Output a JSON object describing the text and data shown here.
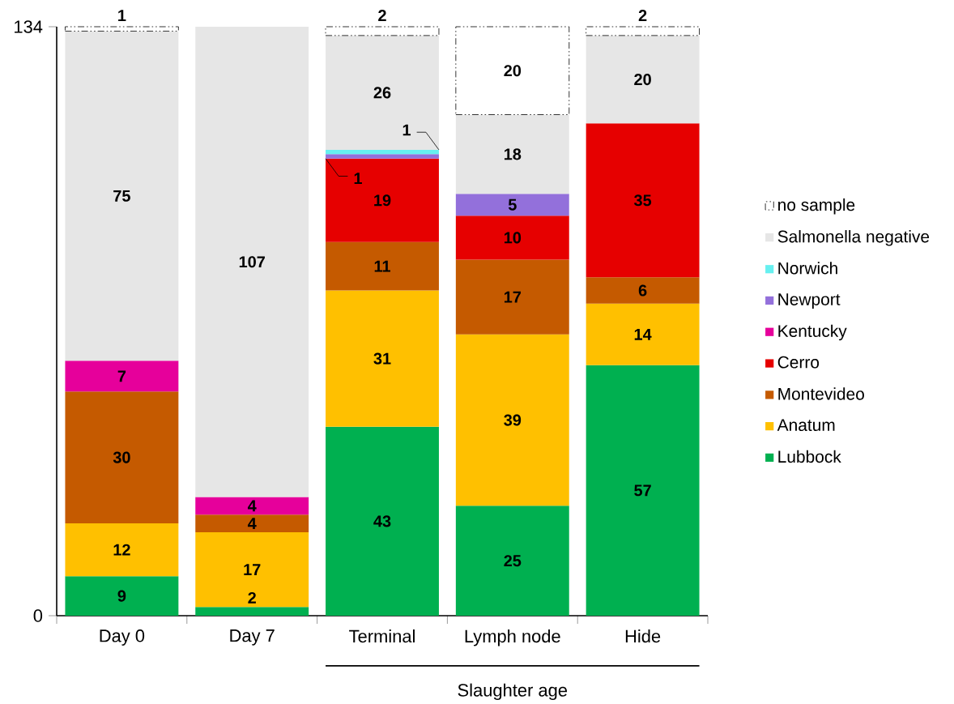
{
  "chart_data": {
    "type": "bar",
    "stacked": true,
    "categories": [
      "Day 0",
      "Day 7",
      "Terminal",
      "Lymph node",
      "Hide"
    ],
    "series": [
      {
        "name": "Lubbock",
        "color": "#00b050",
        "values": [
          9,
          2,
          43,
          25,
          57
        ]
      },
      {
        "name": "Anatum",
        "color": "#ffc000",
        "values": [
          12,
          17,
          31,
          39,
          14
        ]
      },
      {
        "name": "Montevideo",
        "color": "#c55a00",
        "values": [
          30,
          4,
          11,
          17,
          6
        ]
      },
      {
        "name": "Cerro",
        "color": "#e60000",
        "values": [
          null,
          null,
          19,
          10,
          35
        ]
      },
      {
        "name": "Kentucky",
        "color": "#e6009b",
        "values": [
          7,
          4,
          null,
          null,
          null
        ]
      },
      {
        "name": "Newport",
        "color": "#9370db",
        "values": [
          null,
          null,
          1,
          5,
          null
        ]
      },
      {
        "name": "Norwich",
        "color": "#66f0f0",
        "values": [
          null,
          null,
          1,
          null,
          null
        ]
      },
      {
        "name": "Salmonella negative",
        "color": "#e6e6e6",
        "values": [
          75,
          107,
          26,
          18,
          20
        ]
      },
      {
        "name": "no sample",
        "color": "#ffffff",
        "line_style": "dashed",
        "values": [
          1,
          null,
          2,
          20,
          2
        ]
      }
    ],
    "ylim": [
      0,
      134
    ],
    "yticks": [
      0,
      134
    ],
    "grid": false,
    "legend": "right",
    "data_labels": true,
    "annotations": [
      "Slaughter age"
    ]
  }
}
